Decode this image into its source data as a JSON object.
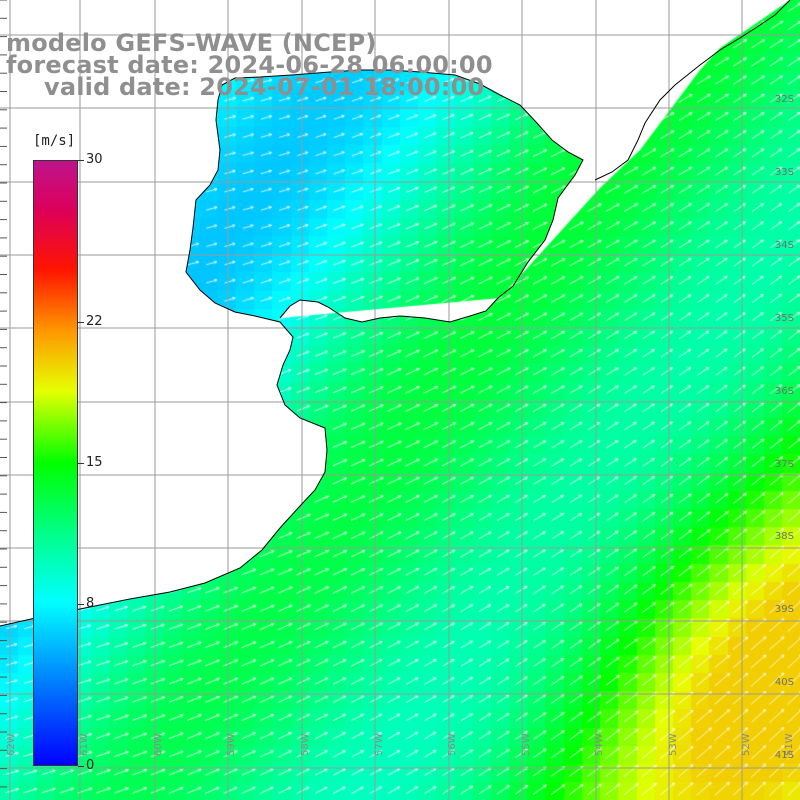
{
  "title": {
    "line1": "modelo GEFS-WAVE (NCEP)",
    "line2": "forecast date: 2024-06-28 06:00:00",
    "line3": "valid date: 2024-07-01 18:00:00"
  },
  "colorbar": {
    "unit": "[m/s]",
    "ticks": [
      {
        "value": 30,
        "label": "30"
      },
      {
        "value": 22,
        "label": "22"
      },
      {
        "value": 15,
        "label": "15"
      },
      {
        "value": 8,
        "label": "8"
      },
      {
        "value": 0,
        "label": "0"
      }
    ],
    "range": [
      0,
      30
    ],
    "colors": [
      "#0000ff",
      "#0080ff",
      "#00ffff",
      "#00ff80",
      "#00ff00",
      "#ffff00",
      "#ff8000",
      "#ff0000",
      "#c00060",
      "#b01080"
    ]
  },
  "map": {
    "lat_labels": [
      "32S",
      "33S",
      "34S",
      "35S",
      "36S",
      "37S",
      "38S",
      "39S",
      "40S",
      "41S"
    ],
    "lon_labels": [
      "62W",
      "61W",
      "60W",
      "59W",
      "58W",
      "57W",
      "56W",
      "55W",
      "54W",
      "53W",
      "52W",
      "51W"
    ],
    "land_color": "#ffffff",
    "grid_color": "#9a9a9a",
    "coast_color": "#000000",
    "arrow_color": "#ffffff"
  }
}
